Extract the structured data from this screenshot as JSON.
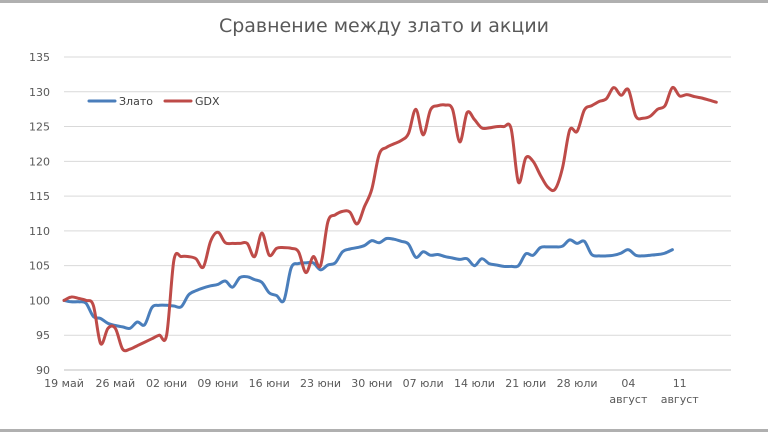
{
  "chart_data": {
    "type": "line",
    "title": "Сравнение между злато и акции",
    "xlabel": "",
    "ylabel": "",
    "ylim": [
      90,
      135
    ],
    "yticks": [
      90,
      95,
      100,
      105,
      110,
      115,
      120,
      125,
      130,
      135
    ],
    "grid": true,
    "legend_position": "top-left",
    "x_ticks": [
      {
        "label": "19 май",
        "sub": "",
        "day": 0
      },
      {
        "label": "26 май",
        "sub": "",
        "day": 7
      },
      {
        "label": "02 юни",
        "sub": "",
        "day": 14
      },
      {
        "label": "09 юни",
        "sub": "",
        "day": 21
      },
      {
        "label": "16 юни",
        "sub": "",
        "day": 28
      },
      {
        "label": "23 юни",
        "sub": "",
        "day": 35
      },
      {
        "label": "30 юни",
        "sub": "",
        "day": 42
      },
      {
        "label": "07 юли",
        "sub": "",
        "day": 49
      },
      {
        "label": "14 юли",
        "sub": "",
        "day": 56
      },
      {
        "label": "21 юли",
        "sub": "",
        "day": 63
      },
      {
        "label": "28 юли",
        "sub": "",
        "day": 70
      },
      {
        "label": "04",
        "sub": "август",
        "day": 77
      },
      {
        "label": "11",
        "sub": "август",
        "day": 84
      }
    ],
    "series": [
      {
        "name": "Злато",
        "color": "#4a7ebb",
        "points": [
          [
            0,
            100.0
          ],
          [
            1,
            99.8
          ],
          [
            2,
            99.8
          ],
          [
            3,
            99.6
          ],
          [
            4,
            97.7
          ],
          [
            5,
            97.4
          ],
          [
            6,
            96.7
          ],
          [
            7,
            96.4
          ],
          [
            8,
            96.2
          ],
          [
            9,
            96.0
          ],
          [
            10,
            96.9
          ],
          [
            11,
            96.5
          ],
          [
            12,
            99.0
          ],
          [
            13,
            99.3
          ],
          [
            14,
            99.3
          ],
          [
            15,
            99.2
          ],
          [
            16,
            99.1
          ],
          [
            17,
            100.8
          ],
          [
            18,
            101.4
          ],
          [
            19,
            101.8
          ],
          [
            20,
            102.1
          ],
          [
            21,
            102.3
          ],
          [
            22,
            102.8
          ],
          [
            23,
            101.9
          ],
          [
            24,
            103.3
          ],
          [
            25,
            103.4
          ],
          [
            26,
            103.0
          ],
          [
            27,
            102.6
          ],
          [
            28,
            101.1
          ],
          [
            29,
            100.7
          ],
          [
            30,
            100.0
          ],
          [
            31,
            104.7
          ],
          [
            32,
            105.3
          ],
          [
            33,
            105.4
          ],
          [
            34,
            105.4
          ],
          [
            35,
            104.4
          ],
          [
            36,
            105.1
          ],
          [
            37,
            105.4
          ],
          [
            38,
            107.0
          ],
          [
            39,
            107.4
          ],
          [
            40,
            107.6
          ],
          [
            41,
            107.9
          ],
          [
            42,
            108.6
          ],
          [
            43,
            108.3
          ],
          [
            44,
            108.9
          ],
          [
            45,
            108.8
          ],
          [
            46,
            108.5
          ],
          [
            47,
            108.1
          ],
          [
            48,
            106.2
          ],
          [
            49,
            107.0
          ],
          [
            50,
            106.5
          ],
          [
            51,
            106.6
          ],
          [
            52,
            106.3
          ],
          [
            53,
            106.1
          ],
          [
            54,
            105.9
          ],
          [
            55,
            106.0
          ],
          [
            56,
            105.0
          ],
          [
            57,
            106.0
          ],
          [
            58,
            105.3
          ],
          [
            59,
            105.1
          ],
          [
            60,
            104.9
          ],
          [
            61,
            104.9
          ],
          [
            62,
            105.0
          ],
          [
            63,
            106.7
          ],
          [
            64,
            106.5
          ],
          [
            65,
            107.6
          ],
          [
            66,
            107.7
          ],
          [
            67,
            107.7
          ],
          [
            68,
            107.8
          ],
          [
            69,
            108.7
          ],
          [
            70,
            108.2
          ],
          [
            71,
            108.5
          ],
          [
            72,
            106.6
          ],
          [
            73,
            106.4
          ],
          [
            74,
            106.4
          ],
          [
            75,
            106.5
          ],
          [
            76,
            106.8
          ],
          [
            77,
            107.3
          ],
          [
            78,
            106.5
          ],
          [
            79,
            106.4
          ],
          [
            80,
            106.5
          ],
          [
            81,
            106.6
          ],
          [
            82,
            106.8
          ],
          [
            83,
            107.3
          ]
        ]
      },
      {
        "name": "GDX",
        "color": "#be4b48",
        "points": [
          [
            0,
            100.0
          ],
          [
            1,
            100.5
          ],
          [
            2,
            100.3
          ],
          [
            3,
            100.0
          ],
          [
            4,
            99.3
          ],
          [
            5,
            93.8
          ],
          [
            6,
            96.0
          ],
          [
            7,
            96.0
          ],
          [
            8,
            93.0
          ],
          [
            9,
            93.0
          ],
          [
            10,
            93.5
          ],
          [
            11,
            94.0
          ],
          [
            12,
            94.5
          ],
          [
            13,
            95.0
          ],
          [
            14,
            95.0
          ],
          [
            15,
            105.8
          ],
          [
            16,
            106.3
          ],
          [
            17,
            106.3
          ],
          [
            18,
            106.0
          ],
          [
            19,
            104.8
          ],
          [
            20,
            108.5
          ],
          [
            21,
            109.8
          ],
          [
            22,
            108.3
          ],
          [
            23,
            108.2
          ],
          [
            24,
            108.2
          ],
          [
            25,
            108.2
          ],
          [
            26,
            106.3
          ],
          [
            27,
            109.7
          ],
          [
            28,
            106.5
          ],
          [
            29,
            107.5
          ],
          [
            30,
            107.6
          ],
          [
            31,
            107.5
          ],
          [
            32,
            107.0
          ],
          [
            33,
            104.0
          ],
          [
            34,
            106.3
          ],
          [
            35,
            105.0
          ],
          [
            36,
            111.3
          ],
          [
            37,
            112.3
          ],
          [
            38,
            112.8
          ],
          [
            39,
            112.7
          ],
          [
            40,
            111.0
          ],
          [
            41,
            113.5
          ],
          [
            42,
            116.0
          ],
          [
            43,
            121.0
          ],
          [
            44,
            122.0
          ],
          [
            45,
            122.5
          ],
          [
            46,
            123.0
          ],
          [
            47,
            124.0
          ],
          [
            48,
            127.5
          ],
          [
            49,
            123.8
          ],
          [
            50,
            127.4
          ],
          [
            51,
            128.0
          ],
          [
            52,
            128.1
          ],
          [
            53,
            127.5
          ],
          [
            54,
            122.8
          ],
          [
            55,
            127.0
          ],
          [
            56,
            126.0
          ],
          [
            57,
            124.8
          ],
          [
            58,
            124.8
          ],
          [
            59,
            125.0
          ],
          [
            60,
            125.0
          ],
          [
            61,
            124.7
          ],
          [
            62,
            117.0
          ],
          [
            63,
            120.5
          ],
          [
            64,
            120.0
          ],
          [
            65,
            118.0
          ],
          [
            66,
            116.3
          ],
          [
            67,
            116.0
          ],
          [
            68,
            119.0
          ],
          [
            69,
            124.5
          ],
          [
            70,
            124.3
          ],
          [
            71,
            127.4
          ],
          [
            72,
            128.0
          ],
          [
            73,
            128.6
          ],
          [
            74,
            129.0
          ],
          [
            75,
            130.6
          ],
          [
            76,
            129.5
          ],
          [
            77,
            130.3
          ],
          [
            78,
            126.5
          ],
          [
            79,
            126.2
          ],
          [
            80,
            126.5
          ],
          [
            81,
            127.5
          ],
          [
            82,
            128.0
          ],
          [
            83,
            130.6
          ],
          [
            84,
            129.4
          ],
          [
            85,
            129.6
          ],
          [
            86,
            129.3
          ],
          [
            87,
            129.1
          ],
          [
            88,
            128.8
          ],
          [
            89,
            128.5
          ]
        ]
      }
    ]
  }
}
